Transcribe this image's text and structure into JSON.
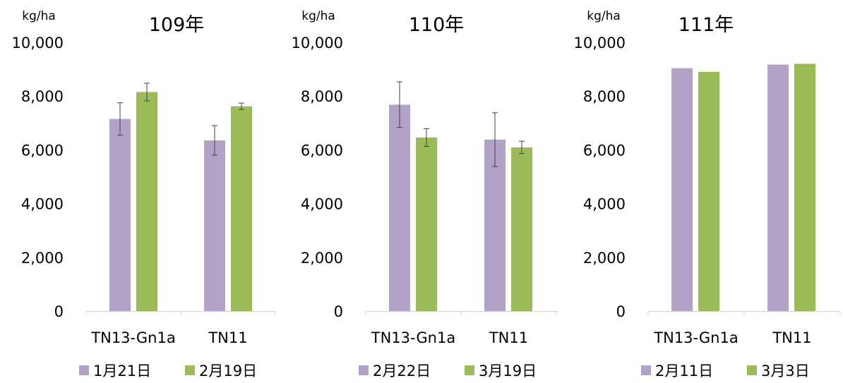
{
  "chart_data": [
    {
      "type": "bar",
      "title": "109年",
      "ylabel": "kg/ha",
      "xlabel": "",
      "ylim": [
        0,
        10000
      ],
      "yticks": [
        "0",
        "2,000",
        "4,000",
        "6,000",
        "8,000",
        "10,000"
      ],
      "categories": [
        "TN13-Gn1a",
        "TN11"
      ],
      "series": [
        {
          "name": "1月21日",
          "color": "#b3a2c7",
          "values": [
            7150,
            6350
          ],
          "error": [
            600,
            550
          ]
        },
        {
          "name": "2月19日",
          "color": "#9bbb59",
          "values": [
            8150,
            7620
          ],
          "error": [
            330,
            120
          ]
        }
      ],
      "grid": false,
      "legend": "bottom"
    },
    {
      "type": "bar",
      "title": "110年",
      "ylabel": "kg/ha",
      "xlabel": "",
      "ylim": [
        0,
        10000
      ],
      "yticks": [
        "0",
        "2,000",
        "4,000",
        "6,000",
        "8,000",
        "10,000"
      ],
      "categories": [
        "TN13-Gn1a",
        "TN11"
      ],
      "series": [
        {
          "name": "2月22日",
          "color": "#b3a2c7",
          "values": [
            7680,
            6380
          ],
          "error": [
            850,
            1000
          ]
        },
        {
          "name": "3月19日",
          "color": "#9bbb59",
          "values": [
            6460,
            6090
          ],
          "error": [
            330,
            230
          ]
        }
      ],
      "grid": false,
      "legend": "bottom"
    },
    {
      "type": "bar",
      "title": "111年",
      "ylabel": "kg/ha",
      "xlabel": "",
      "ylim": [
        0,
        10000
      ],
      "yticks": [
        "0",
        "2,000",
        "4,000",
        "6,000",
        "8,000",
        "10,000"
      ],
      "categories": [
        "TN13-Gn1a",
        "TN11"
      ],
      "series": [
        {
          "name": "2月11日",
          "color": "#b3a2c7",
          "values": [
            9040,
            9170
          ],
          "error": null
        },
        {
          "name": "3月3日",
          "color": "#9bbb59",
          "values": [
            8900,
            9200
          ],
          "error": null
        }
      ],
      "grid": false,
      "legend": "bottom"
    }
  ]
}
